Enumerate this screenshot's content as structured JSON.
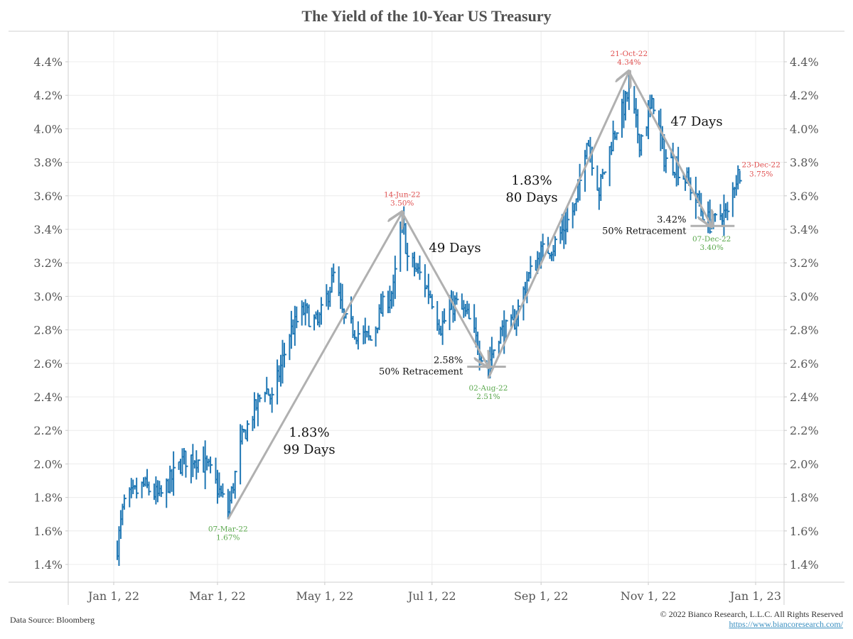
{
  "chart_data": {
    "type": "ohlc",
    "title": "The Yield of the 10-Year US Treasury",
    "xlabel": "",
    "ylabel": "",
    "y_unit": "%",
    "ylim": [
      1.3,
      4.5
    ],
    "yticks": [
      1.4,
      1.6,
      1.8,
      2.0,
      2.2,
      2.4,
      2.6,
      2.8,
      3.0,
      3.2,
      3.4,
      3.6,
      3.8,
      4.0,
      4.2,
      4.4
    ],
    "ytick_labels": [
      "1.4%",
      "1.6%",
      "1.8%",
      "2.0%",
      "2.2%",
      "2.4%",
      "2.6%",
      "2.8%",
      "3.0%",
      "3.2%",
      "3.4%",
      "3.6%",
      "3.8%",
      "4.0%",
      "4.2%",
      "4.4%"
    ],
    "xlim": [
      "2021-12-06",
      "2023-01-17"
    ],
    "xticks": [
      "2022-01-01",
      "2022-03-01",
      "2022-05-01",
      "2022-07-01",
      "2022-09-01",
      "2022-11-01",
      "2023-01-01"
    ],
    "xtick_labels": [
      "Jan 1, 22",
      "Mar 1, 22",
      "May 1, 22",
      "Jul 1, 22",
      "Sep 1, 22",
      "Nov 1, 22",
      "Jan 1, 23"
    ],
    "grid": true,
    "legend": "none",
    "series_color": "#1f77b4",
    "anchors": [
      {
        "date": "2022-01-03",
        "value": 1.51
      },
      {
        "date": "2022-01-07",
        "value": 1.77
      },
      {
        "date": "2022-01-18",
        "value": 1.87
      },
      {
        "date": "2022-01-27",
        "value": 1.8
      },
      {
        "date": "2022-02-10",
        "value": 2.03
      },
      {
        "date": "2022-02-16",
        "value": 2.04
      },
      {
        "date": "2022-02-24",
        "value": 1.97
      },
      {
        "date": "2022-03-07",
        "value": 1.72
      },
      {
        "date": "2022-03-15",
        "value": 2.15
      },
      {
        "date": "2022-03-21",
        "value": 2.3
      },
      {
        "date": "2022-03-28",
        "value": 2.46
      },
      {
        "date": "2022-04-01",
        "value": 2.38
      },
      {
        "date": "2022-04-11",
        "value": 2.78
      },
      {
        "date": "2022-04-19",
        "value": 2.91
      },
      {
        "date": "2022-04-27",
        "value": 2.83
      },
      {
        "date": "2022-05-06",
        "value": 3.12
      },
      {
        "date": "2022-05-12",
        "value": 2.85
      },
      {
        "date": "2022-05-20",
        "value": 2.78
      },
      {
        "date": "2022-05-27",
        "value": 2.74
      },
      {
        "date": "2022-06-03",
        "value": 2.94
      },
      {
        "date": "2022-06-09",
        "value": 3.04
      },
      {
        "date": "2022-06-14",
        "value": 3.47
      },
      {
        "date": "2022-06-17",
        "value": 3.23
      },
      {
        "date": "2022-06-24",
        "value": 3.13
      },
      {
        "date": "2022-06-30",
        "value": 3.01
      },
      {
        "date": "2022-07-06",
        "value": 2.82
      },
      {
        "date": "2022-07-14",
        "value": 2.96
      },
      {
        "date": "2022-07-21",
        "value": 2.88
      },
      {
        "date": "2022-07-28",
        "value": 2.68
      },
      {
        "date": "2022-08-02",
        "value": 2.6
      },
      {
        "date": "2022-08-08",
        "value": 2.78
      },
      {
        "date": "2022-08-16",
        "value": 2.82
      },
      {
        "date": "2022-08-24",
        "value": 3.1
      },
      {
        "date": "2022-09-01",
        "value": 3.26
      },
      {
        "date": "2022-09-08",
        "value": 3.3
      },
      {
        "date": "2022-09-14",
        "value": 3.41
      },
      {
        "date": "2022-09-21",
        "value": 3.55
      },
      {
        "date": "2022-09-27",
        "value": 3.96
      },
      {
        "date": "2022-10-04",
        "value": 3.63
      },
      {
        "date": "2022-10-11",
        "value": 3.92
      },
      {
        "date": "2022-10-21",
        "value": 4.22
      },
      {
        "date": "2022-10-27",
        "value": 3.93
      },
      {
        "date": "2022-11-04",
        "value": 4.16
      },
      {
        "date": "2022-11-10",
        "value": 3.83
      },
      {
        "date": "2022-11-17",
        "value": 3.78
      },
      {
        "date": "2022-11-23",
        "value": 3.69
      },
      {
        "date": "2022-12-01",
        "value": 3.52
      },
      {
        "date": "2022-12-07",
        "value": 3.42
      },
      {
        "date": "2022-12-13",
        "value": 3.5
      },
      {
        "date": "2022-12-16",
        "value": 3.48
      },
      {
        "date": "2022-12-20",
        "value": 3.68
      },
      {
        "date": "2022-12-23",
        "value": 3.75
      }
    ],
    "annotations": [
      {
        "kind": "extreme",
        "date": "2022-03-07",
        "label_date": "07-Mar-22",
        "label_value": "1.67%",
        "value": 1.67,
        "color": "#5aa84c",
        "position": "below"
      },
      {
        "kind": "extreme",
        "date": "2022-06-14",
        "label_date": "14-Jun-22",
        "label_value": "3.50%",
        "value": 3.5,
        "color": "#e05050",
        "position": "above"
      },
      {
        "kind": "extreme",
        "date": "2022-08-02",
        "label_date": "02-Aug-22",
        "label_value": "2.51%",
        "value": 2.51,
        "color": "#5aa84c",
        "position": "below"
      },
      {
        "kind": "extreme",
        "date": "2022-10-21",
        "label_date": "21-Oct-22",
        "label_value": "4.34%",
        "value": 4.34,
        "color": "#e05050",
        "position": "above"
      },
      {
        "kind": "extreme",
        "date": "2022-12-07",
        "label_date": "07-Dec-22",
        "label_value": "3.40%",
        "value": 3.4,
        "color": "#5aa84c",
        "position": "below"
      },
      {
        "kind": "extreme",
        "date": "2022-12-23",
        "label_date": "23-Dec-22",
        "label_value": "3.75%",
        "value": 3.75,
        "color": "#e05050",
        "position": "right"
      }
    ],
    "trend_arrows": [
      {
        "from": {
          "date": "2022-03-07",
          "value": 1.67
        },
        "to": {
          "date": "2022-06-14",
          "value": 3.5
        },
        "label_lines": [
          "1.83%",
          "99 Days"
        ]
      },
      {
        "from": {
          "date": "2022-06-14",
          "value": 3.5
        },
        "to": {
          "date": "2022-08-02",
          "value": 2.58
        },
        "label_lines": [
          "49 Days"
        ]
      },
      {
        "from": {
          "date": "2022-08-02",
          "value": 2.51
        },
        "to": {
          "date": "2022-10-21",
          "value": 4.34
        },
        "label_lines": [
          "1.83%",
          "80 Days"
        ]
      },
      {
        "from": {
          "date": "2022-10-21",
          "value": 4.34
        },
        "to": {
          "date": "2022-12-07",
          "value": 3.42
        },
        "label_lines": [
          "47 Days"
        ]
      }
    ],
    "retracement_lines": [
      {
        "value": 2.58,
        "date_from": "2022-07-21",
        "date_to": "2022-08-12",
        "label_lines": [
          "2.58%",
          "50% Retracement"
        ]
      },
      {
        "value": 3.42,
        "date_from": "2022-11-25",
        "date_to": "2022-12-20",
        "label_lines": [
          "3.42%",
          "50% Retracement"
        ]
      }
    ]
  },
  "footer": {
    "source": "Data Source: Bloomberg",
    "copyright": "© 2022 Bianco Research, L.L.C. All Rights Reserved",
    "url": "https://www.biancoresearch.com/"
  }
}
